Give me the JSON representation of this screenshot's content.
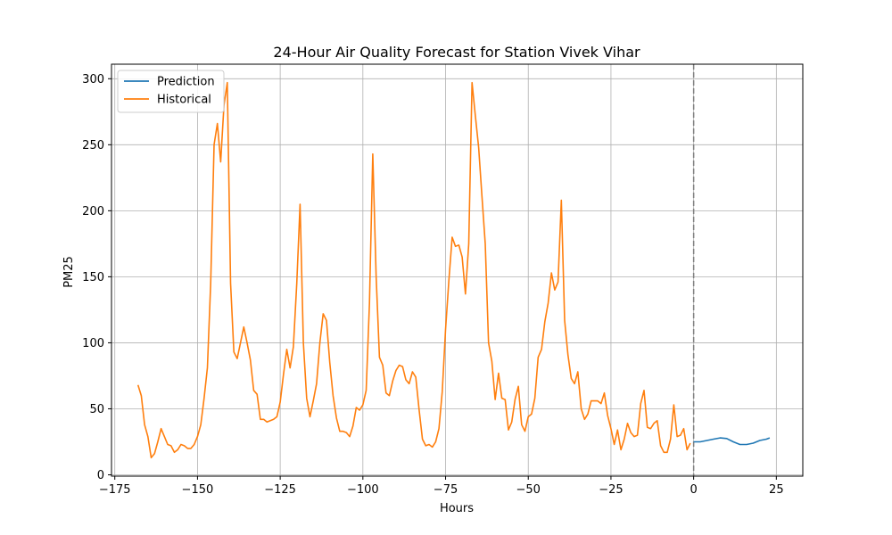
{
  "chart_data": {
    "type": "line",
    "title": "24-Hour Air Quality Forecast for Station Vivek Vihar",
    "xlabel": "Hours",
    "ylabel": "PM25",
    "xlim": [
      -176,
      33
    ],
    "ylim": [
      -1,
      311
    ],
    "xticks": [
      -175,
      -150,
      -125,
      -100,
      -75,
      -50,
      -25,
      0,
      25
    ],
    "yticks": [
      0,
      50,
      100,
      150,
      200,
      250,
      300
    ],
    "grid": true,
    "legend_position": "upper-left",
    "vline": {
      "x": 0,
      "style": "dashed",
      "color": "#808080"
    },
    "series": [
      {
        "name": "Prediction",
        "color": "#1f77b4",
        "x": [
          0,
          2,
          4,
          6,
          8,
          10,
          12,
          14,
          16,
          18,
          20,
          22,
          23
        ],
        "y": [
          25,
          25,
          26,
          27,
          28,
          27.5,
          25,
          23,
          23,
          24,
          26,
          27,
          28
        ]
      },
      {
        "name": "Historical",
        "color": "#ff7f0e",
        "x": [
          -168,
          -167,
          -166,
          -165,
          -164,
          -163,
          -162,
          -161,
          -160,
          -159,
          -158,
          -157,
          -156,
          -155,
          -154,
          -153,
          -152,
          -151,
          -150,
          -149,
          -148,
          -147,
          -146,
          -145,
          -144,
          -143,
          -142,
          -141,
          -140,
          -139,
          -138,
          -137,
          -136,
          -135,
          -134,
          -133,
          -132,
          -131,
          -130,
          -129,
          -128,
          -127,
          -126,
          -125,
          -124,
          -123,
          -122,
          -121,
          -120,
          -119,
          -118,
          -117,
          -116,
          -115,
          -114,
          -113,
          -112,
          -111,
          -110,
          -109,
          -108,
          -107,
          -106,
          -105,
          -104,
          -103,
          -102,
          -101,
          -100,
          -99,
          -98,
          -97,
          -96,
          -95,
          -94,
          -93,
          -92,
          -91,
          -90,
          -89,
          -88,
          -87,
          -86,
          -85,
          -84,
          -83,
          -82,
          -81,
          -80,
          -79,
          -78,
          -77,
          -76,
          -75,
          -74,
          -73,
          -72,
          -71,
          -70,
          -69,
          -68,
          -67,
          -66,
          -65,
          -64,
          -63,
          -62,
          -61,
          -60,
          -59,
          -58,
          -57,
          -56,
          -55,
          -54,
          -53,
          -52,
          -51,
          -50,
          -49,
          -48,
          -47,
          -46,
          -45,
          -44,
          -43,
          -42,
          -41,
          -40,
          -39,
          -38,
          -37,
          -36,
          -35,
          -34,
          -33,
          -32,
          -31,
          -30,
          -29,
          -28,
          -27,
          -26,
          -25,
          -24,
          -23,
          -22,
          -21,
          -20,
          -19,
          -18,
          -17,
          -16,
          -15,
          -14,
          -13,
          -12,
          -11,
          -10,
          -9,
          -8,
          -7,
          -6,
          -5,
          -4,
          -3,
          -2,
          -1
        ],
        "y": [
          68,
          60,
          38,
          29,
          13,
          16,
          25,
          35,
          29,
          23,
          22,
          17,
          19,
          23,
          22,
          20,
          20,
          23,
          29,
          38,
          58,
          81,
          145,
          250,
          266,
          237,
          280,
          297,
          145,
          93,
          88,
          100,
          112,
          100,
          87,
          64,
          61,
          42,
          42,
          40,
          41,
          42,
          44,
          55,
          76,
          95,
          81,
          97,
          145,
          205,
          100,
          58,
          44,
          56,
          69,
          100,
          122,
          117,
          85,
          60,
          43,
          33,
          33,
          32,
          29,
          37,
          51,
          49,
          53,
          64,
          130,
          243,
          150,
          89,
          83,
          62,
          60,
          71,
          79,
          83,
          82,
          72,
          69,
          78,
          74,
          49,
          27,
          22,
          23,
          21,
          25,
          35,
          63,
          110,
          147,
          180,
          173,
          174,
          165,
          137,
          175,
          297,
          272,
          248,
          211,
          175,
          100,
          86,
          57,
          77,
          58,
          57,
          34,
          40,
          57,
          67,
          38,
          33,
          44,
          46,
          58,
          89,
          95,
          116,
          130,
          153,
          140,
          146,
          208,
          117,
          91,
          73,
          69,
          78,
          50,
          42,
          46,
          56,
          56,
          56,
          54,
          62,
          45,
          35,
          23,
          34,
          19,
          27,
          39,
          32,
          29,
          30,
          54,
          64,
          36,
          35,
          39,
          41,
          22,
          17,
          17,
          27,
          53,
          29,
          30,
          35,
          19,
          24
        ]
      }
    ]
  }
}
